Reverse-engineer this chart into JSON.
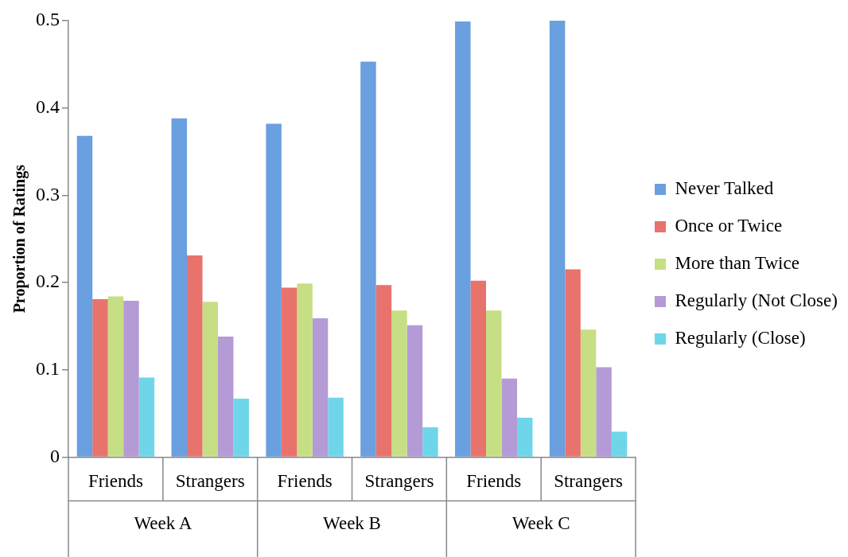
{
  "chart_data": {
    "type": "bar",
    "ylabel": "Proportion of Ratings",
    "categories": [
      "Friends",
      "Strangers",
      "Friends",
      "Strangers",
      "Friends",
      "Strangers"
    ],
    "annotations": [
      "Week A",
      "Week B",
      "Week C"
    ],
    "series": [
      {
        "name": "Never Talked",
        "color": "#6a9fe0",
        "values": [
          0.368,
          0.388,
          0.382,
          0.453,
          0.499,
          0.5
        ]
      },
      {
        "name": "Once or Twice",
        "color": "#e8736d",
        "values": [
          0.181,
          0.231,
          0.194,
          0.197,
          0.202,
          0.215
        ]
      },
      {
        "name": "More than Twice",
        "color": "#c6df84",
        "values": [
          0.184,
          0.178,
          0.199,
          0.168,
          0.168,
          0.146
        ]
      },
      {
        "name": "Regularly (Not Close)",
        "color": "#b49bd6",
        "values": [
          0.179,
          0.138,
          0.159,
          0.151,
          0.09,
          0.103
        ]
      },
      {
        "name": "Regularly (Close)",
        "color": "#6fd6ea",
        "values": [
          0.091,
          0.067,
          0.068,
          0.034,
          0.045,
          0.029
        ]
      }
    ],
    "ylim": [
      0,
      0.5
    ],
    "yticks": [
      0,
      0.1,
      0.2,
      0.3,
      0.4,
      0.5
    ],
    "grid": false,
    "legend": "right"
  }
}
